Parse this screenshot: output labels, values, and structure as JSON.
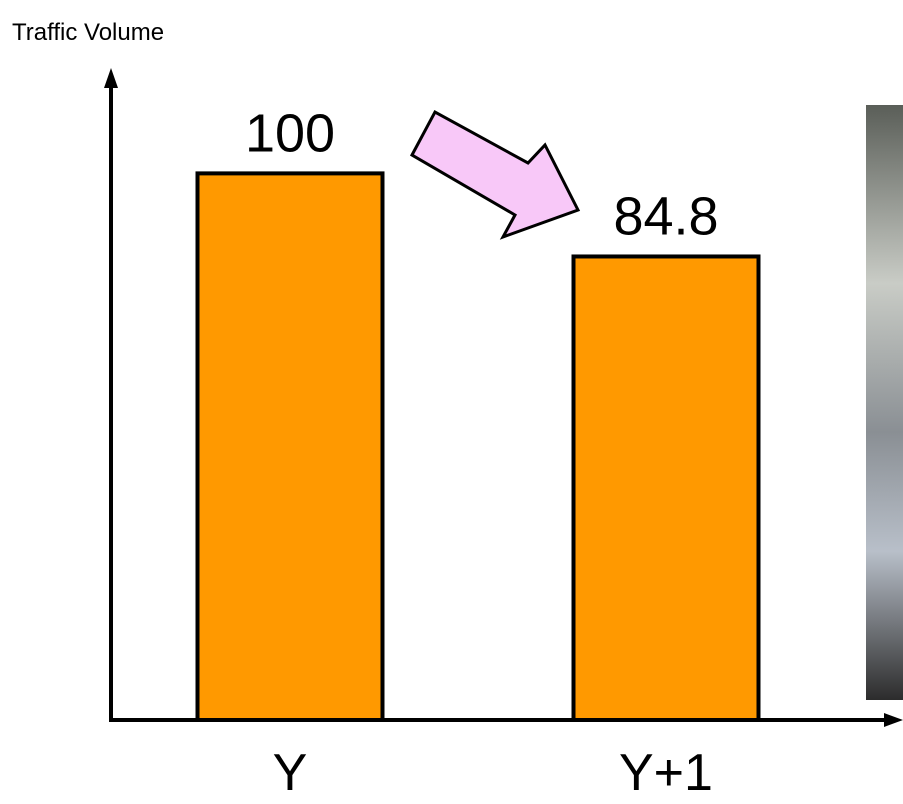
{
  "chart_data": {
    "type": "bar",
    "title": "Traffic Volume",
    "categories": [
      "Y",
      "Y+1"
    ],
    "values": [
      100,
      84.8
    ],
    "color": "#ff9900",
    "ylim": [
      0,
      118
    ]
  }
}
